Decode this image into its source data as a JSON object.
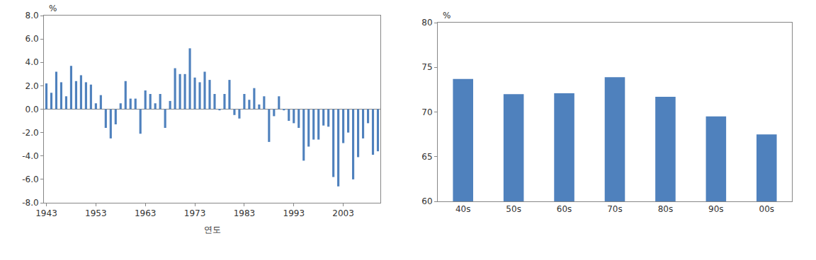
{
  "chart_data": [
    {
      "type": "bar",
      "x": [
        1943,
        1944,
        1945,
        1946,
        1947,
        1948,
        1949,
        1950,
        1951,
        1952,
        1953,
        1954,
        1955,
        1956,
        1957,
        1958,
        1959,
        1960,
        1961,
        1962,
        1963,
        1964,
        1965,
        1966,
        1967,
        1968,
        1969,
        1970,
        1971,
        1972,
        1973,
        1974,
        1975,
        1976,
        1977,
        1978,
        1979,
        1980,
        1981,
        1982,
        1983,
        1984,
        1985,
        1986,
        1987,
        1988,
        1989,
        1990,
        1991,
        1992,
        1993,
        1994,
        1995,
        1996,
        1997,
        1998,
        1999,
        2000,
        2001,
        2002,
        2003,
        2004,
        2005,
        2006,
        2007,
        2008,
        2009,
        2010
      ],
      "values": [
        2.2,
        1.4,
        3.2,
        2.3,
        1.1,
        3.7,
        2.4,
        2.9,
        2.3,
        2.1,
        0.5,
        1.2,
        -1.6,
        -2.5,
        -1.3,
        0.5,
        2.4,
        0.9,
        0.9,
        -2.1,
        1.6,
        1.3,
        0.5,
        1.3,
        -1.6,
        0.7,
        3.5,
        3.0,
        3.0,
        5.2,
        2.7,
        2.3,
        3.2,
        2.5,
        1.3,
        -0.1,
        1.3,
        2.5,
        -0.5,
        -0.8,
        1.3,
        0.8,
        1.8,
        0.4,
        1.1,
        -2.8,
        -0.6,
        1.1,
        -0.1,
        -1.0,
        -1.2,
        -1.6,
        -4.4,
        -3.2,
        -2.6,
        -2.6,
        -1.4,
        -1.5,
        -5.8,
        -6.6,
        -2.9,
        -2.0,
        -6.0,
        -4.1,
        -2.5,
        -1.2,
        -3.9,
        -3.6
      ],
      "color": "#4f81bd",
      "xlim": [
        1942.5,
        2010.5
      ],
      "xticks": [
        1943,
        1953,
        1963,
        1973,
        1983,
        1993,
        2003
      ],
      "ylim": [
        -8,
        8
      ],
      "yticks": [
        {
          "value": -8,
          "label": "-8.0"
        },
        {
          "value": -6,
          "label": "-6.0"
        },
        {
          "value": -4,
          "label": "-4.0"
        },
        {
          "value": -2,
          "label": "-2.0"
        },
        {
          "value": 0,
          "label": "0.0"
        },
        {
          "value": 2,
          "label": "2.0"
        },
        {
          "value": 4,
          "label": "4.0"
        },
        {
          "value": 6,
          "label": "6.0"
        },
        {
          "value": 8,
          "label": "8.0"
        }
      ],
      "xlabel": "연도",
      "ylabel": "%",
      "grid": false
    },
    {
      "type": "bar",
      "categories": [
        "40s",
        "50s",
        "60s",
        "70s",
        "80s",
        "90s",
        "00s"
      ],
      "values": [
        73.7,
        72.0,
        72.1,
        73.9,
        71.7,
        69.5,
        67.5
      ],
      "color": "#4f81bd",
      "ylim": [
        60,
        80
      ],
      "yticks": [
        60,
        65,
        70,
        75,
        80
      ],
      "ylabel": "%",
      "grid": false
    }
  ]
}
